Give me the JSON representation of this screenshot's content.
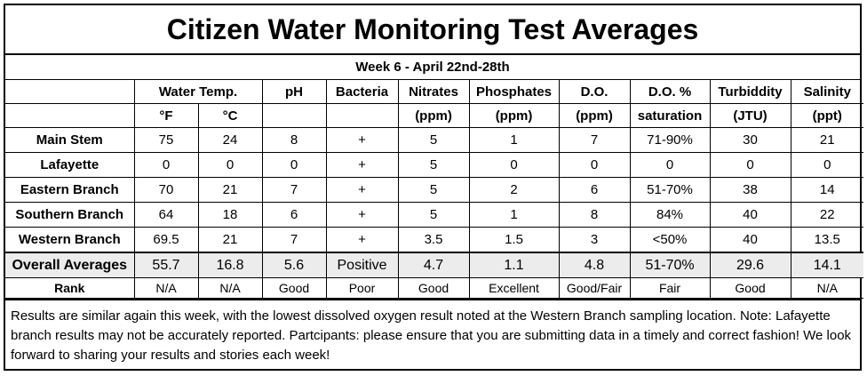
{
  "title": "Citizen Water Monitoring Test Averages",
  "subtitle": "Week 6 - April 22nd-28th",
  "headers": {
    "water_temp": "Water Temp.",
    "ph": "pH",
    "bacteria": "Bacteria",
    "nitrates": "Nitrates",
    "phosphates": "Phosphates",
    "do": "D.O.",
    "do_pct": "D.O. %",
    "turbidity": "Turbiddity",
    "salinity": "Salinity"
  },
  "units": {
    "f": "°F",
    "c": "°C",
    "ph": "",
    "bacteria": "",
    "nitrates": "(ppm)",
    "phosphates": "(ppm)",
    "do": "(ppm)",
    "do_pct": "saturation",
    "turbidity": "(JTU)",
    "salinity": "(ppt)"
  },
  "rows": [
    {
      "location": "Main Stem",
      "f": "75",
      "c": "24",
      "ph": "8",
      "bacteria": "+",
      "nitrates": "5",
      "phosphates": "1",
      "do": "7",
      "do_pct": "71-90%",
      "turbidity": "30",
      "salinity": "21"
    },
    {
      "location": "Lafayette",
      "f": "0",
      "c": "0",
      "ph": "0",
      "bacteria": "+",
      "nitrates": "5",
      "phosphates": "0",
      "do": "0",
      "do_pct": "0",
      "turbidity": "0",
      "salinity": "0"
    },
    {
      "location": "Eastern Branch",
      "f": "70",
      "c": "21",
      "ph": "7",
      "bacteria": "+",
      "nitrates": "5",
      "phosphates": "2",
      "do": "6",
      "do_pct": "51-70%",
      "turbidity": "38",
      "salinity": "14"
    },
    {
      "location": "Southern Branch",
      "f": "64",
      "c": "18",
      "ph": "6",
      "bacteria": "+",
      "nitrates": "5",
      "phosphates": "1",
      "do": "8",
      "do_pct": "84%",
      "turbidity": "40",
      "salinity": "22"
    },
    {
      "location": "Western Branch",
      "f": "69.5",
      "c": "21",
      "ph": "7",
      "bacteria": "+",
      "nitrates": "3.5",
      "phosphates": "1.5",
      "do": "3",
      "do_pct": "<50%",
      "turbidity": "40",
      "salinity": "13.5"
    }
  ],
  "averages": {
    "label": "Overall Averages",
    "f": "55.7",
    "c": "16.8",
    "ph": "5.6",
    "bacteria": "Positive",
    "nitrates": "4.7",
    "phosphates": "1.1",
    "do": "4.8",
    "do_pct": "51-70%",
    "turbidity": "29.6",
    "salinity": "14.1"
  },
  "rank": {
    "label": "Rank",
    "f": "N/A",
    "c": "N/A",
    "ph": "Good",
    "bacteria": "Poor",
    "nitrates": "Good",
    "phosphates": "Excellent",
    "do": "Good/Fair",
    "do_pct": "Fair",
    "turbidity": "Good",
    "salinity": "N/A"
  },
  "notes": "Results are similar again this week, with the lowest dissolved oxygen result noted at the Western Branch sampling location. Note: Lafayette branch results may not be accurately reported. Partcipants: please ensure that you are submitting data in a timely and correct fashion! We look forward to sharing your results and stories each week!"
}
